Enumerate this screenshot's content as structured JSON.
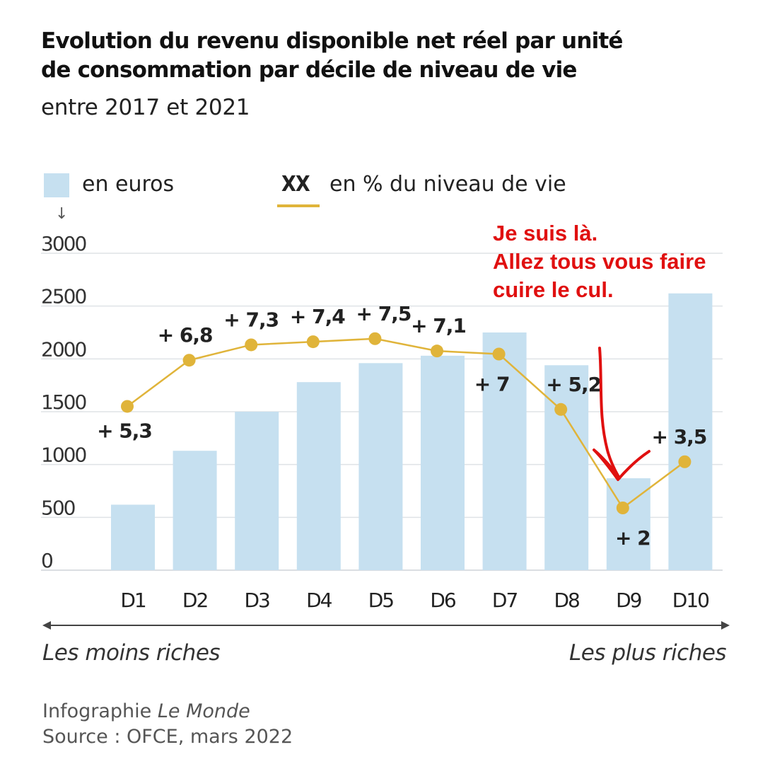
{
  "title_line1": "Evolution du revenu disponible net réel par unité",
  "title_line2": "de consommation par décile de niveau de vie",
  "subtitle": "entre 2017 et 2021",
  "legend": {
    "bars_label": "en euros",
    "line_code": "XX",
    "line_label": "en % du niveau de vie",
    "arrow": "↓"
  },
  "scale_left": "Les moins riches",
  "scale_right": "Les plus riches",
  "credits": {
    "infographie": "Infographie",
    "publisher": "Le Monde",
    "source": "Source : OFCE, mars 2022"
  },
  "annotation": {
    "line1": "Je suis là.",
    "line2": "Allez tous vous faire",
    "line3": "cuire le cul."
  },
  "colors": {
    "bar": "#c6e0f0",
    "line": "#e0b43a",
    "annotation": "#e01010",
    "gridline": "#dfe3e6"
  },
  "chart_data": {
    "type": "bar",
    "categories": [
      "D1",
      "D2",
      "D3",
      "D4",
      "D5",
      "D6",
      "D7",
      "D8",
      "D9",
      "D10"
    ],
    "ylim": [
      0,
      3000
    ],
    "yticks": [
      0,
      500,
      1000,
      1500,
      2000,
      2500,
      3000
    ],
    "ytick_labels": [
      "0",
      "500",
      "1000",
      "1500",
      "2000",
      "2500",
      "3000"
    ],
    "grid": true,
    "series": [
      {
        "name": "en euros",
        "type": "bar",
        "values": [
          620,
          1130,
          1500,
          1780,
          1960,
          2030,
          2250,
          1940,
          870,
          2620
        ]
      },
      {
        "name": "en % du niveau de vie",
        "type": "line",
        "values": [
          5.3,
          6.8,
          7.3,
          7.4,
          7.5,
          7.1,
          7,
          5.2,
          2,
          3.5
        ],
        "labels": [
          "+ 5,3",
          "+ 6,8",
          "+ 7,3",
          "+ 7,4",
          "+ 7,5",
          "+ 7,1",
          "+ 7",
          "+ 5,2",
          "+ 2",
          "+ 3,5"
        ]
      }
    ]
  }
}
